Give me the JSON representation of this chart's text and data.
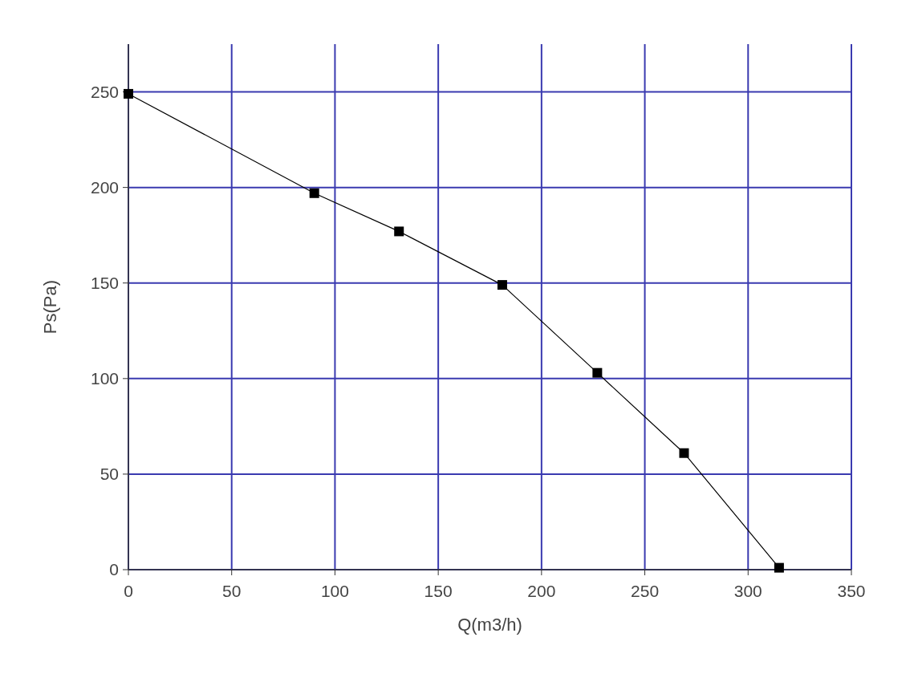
{
  "chart_data": {
    "type": "line",
    "xlabel": "Q(m3/h)",
    "ylabel": "Ps(Pa)",
    "x": [
      0,
      90,
      131,
      181,
      227,
      269,
      315
    ],
    "series": [
      {
        "color": "#000000",
        "values": [
          249,
          197,
          177,
          149,
          103,
          61,
          1
        ]
      }
    ],
    "xlim": [
      0,
      350
    ],
    "xticks": [
      0,
      50,
      100,
      150,
      200,
      250,
      300,
      350
    ],
    "ylim": [
      0,
      275
    ],
    "yticks": [
      0,
      50,
      100,
      150,
      200,
      250
    ],
    "grid": true,
    "marker": "square",
    "line_style": "solid"
  }
}
